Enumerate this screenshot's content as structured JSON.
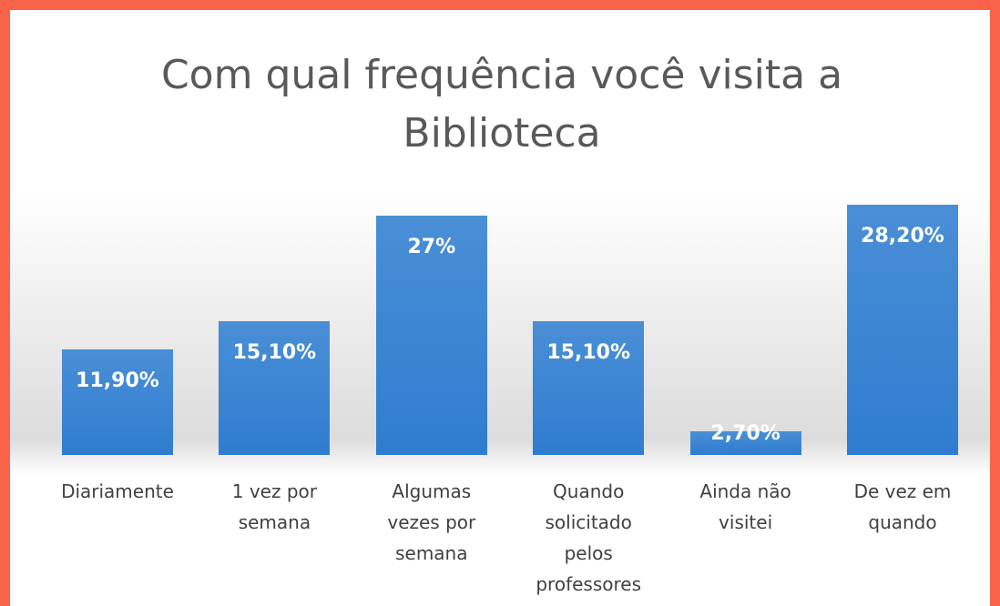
{
  "chart_data": {
    "type": "bar",
    "title": "Com qual frequência você visita a Biblioteca",
    "categories": [
      "Diariamente",
      "1 vez por semana",
      "Algumas vezes por semana",
      "Quando solicitado pelos professores",
      "Ainda não visitei",
      "De vez em quando"
    ],
    "values": [
      11.9,
      15.1,
      27,
      15.1,
      2.7,
      28.2
    ],
    "value_labels": [
      "11,90%",
      "15,10%",
      "27%",
      "15,10%",
      "2,70%",
      "28,20%"
    ],
    "color": "#4a8fd6"
  }
}
